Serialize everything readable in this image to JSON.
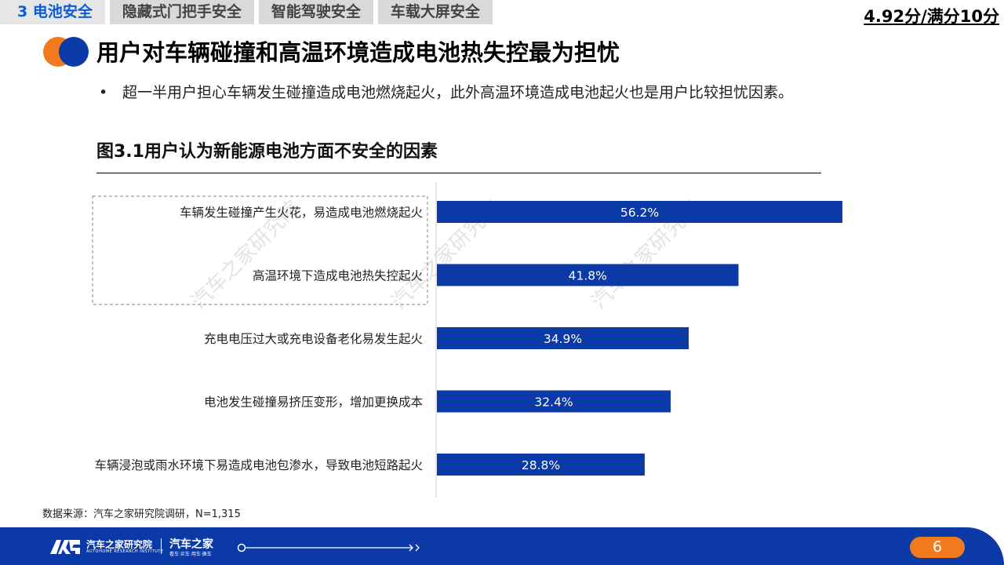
{
  "tabs": [
    {
      "label": "3 电池安全",
      "active": true
    },
    {
      "label": "隐藏式门把手安全",
      "active": false
    },
    {
      "label": "智能驾驶安全",
      "active": false
    },
    {
      "label": "车载大屏安全",
      "active": false
    }
  ],
  "score": "4.92分/满分10分",
  "title": "用户对车辆碰撞和高温环境造成电池热失控最为担忧",
  "bullet": "超一半用户担心车辆发生碰撞造成电池燃烧起火，此外高温环境造成电池起火也是用户比较担忧因素。",
  "bullet_marker": "•",
  "chart_data": {
    "type": "bar",
    "orientation": "horizontal",
    "title": "图3.1用户认为新能源电池方面不安全的因素",
    "categories": [
      "车辆发生碰撞产生火花，易造成电池燃烧起火",
      "高温环境下造成电池热失控起火",
      "充电电压过大或充电设备老化易发生起火",
      "电池发生碰撞易挤压变形，增加更换成本",
      "车辆浸泡或雨水环境下易造成电池包渗水，导致电池短路起火"
    ],
    "values": [
      56.2,
      41.8,
      34.9,
      32.4,
      28.8
    ],
    "value_labels": [
      "56.2%",
      "41.8%",
      "34.9%",
      "32.4%",
      "28.8%"
    ],
    "unit": "%",
    "bar_color": "#0b3aa6",
    "highlighted_categories": [
      0,
      1
    ],
    "grid": false,
    "legend": "none"
  },
  "watermark": "汽车之家研究院",
  "source": "数据来源：汽车之家研究院调研，N=1,315",
  "footer": {
    "logo_text": "汽车之家研究院",
    "logo_sub": "AUTOHOME RESEARCH INSTITUTE",
    "brand_text": "汽车之家",
    "brand_sub": "看车·买车·用车·换车",
    "page_number": "6"
  },
  "colors": {
    "accent_blue": "#0b3aa6",
    "accent_orange": "#f07a1d",
    "tab_active_text": "#0a5bd8"
  }
}
